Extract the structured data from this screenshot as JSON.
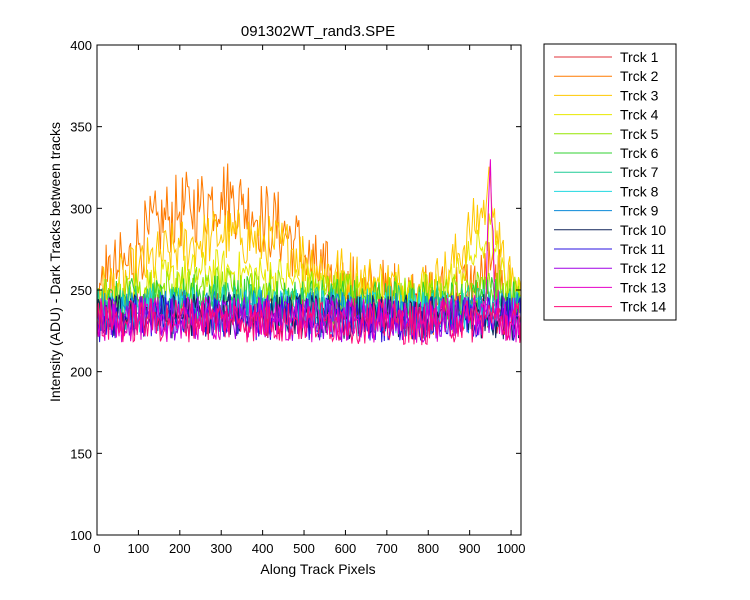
{
  "chart_data": {
    "type": "line",
    "title": "091302WT_rand3.SPE",
    "xlabel": "Along Track Pixels",
    "ylabel": "Intensity (ADU) - Dark Tracks between tracks",
    "xlim": [
      0,
      1024
    ],
    "ylim": [
      100,
      400
    ],
    "x_ticks": [
      "0",
      "100",
      "200",
      "300",
      "400",
      "500",
      "600",
      "700",
      "800",
      "900",
      "1000"
    ],
    "y_ticks": [
      "100",
      "150",
      "200",
      "250",
      "300",
      "350",
      "400"
    ],
    "grid": false,
    "legend_position": "outside-right",
    "x_sample": [
      0,
      25,
      50,
      75,
      100,
      125,
      150,
      175,
      200,
      225,
      250,
      275,
      300,
      325,
      350,
      375,
      400,
      425,
      450,
      475,
      500,
      525,
      550,
      575,
      600,
      625,
      650,
      675,
      700,
      725,
      750,
      775,
      800,
      825,
      850,
      875,
      900,
      925,
      940,
      950,
      960,
      975,
      1000,
      1024
    ],
    "series": [
      {
        "name": "Trck 1",
        "color": "#e0303a",
        "values": [
          236,
          234,
          237,
          235,
          238,
          236,
          237,
          235,
          236,
          238,
          237,
          236,
          235,
          237,
          236,
          238,
          236,
          235,
          237,
          236,
          234,
          236,
          237,
          235,
          236,
          238,
          235,
          236,
          237,
          235,
          236,
          234,
          236,
          237,
          235,
          236,
          237,
          236,
          238,
          240,
          236,
          235,
          236,
          235
        ]
      },
      {
        "name": "Trck 2",
        "color": "#ff7a00",
        "values": [
          248,
          255,
          262,
          265,
          278,
          284,
          290,
          295,
          298,
          300,
          302,
          305,
          310,
          306,
          302,
          298,
          294,
          290,
          286,
          280,
          270,
          262,
          258,
          254,
          250,
          248,
          246,
          247,
          246,
          245,
          244,
          243,
          242,
          244,
          246,
          248,
          250,
          252,
          256,
          262,
          255,
          250,
          246,
          244
        ]
      },
      {
        "name": "Trck 3",
        "color": "#ffc800",
        "values": [
          246,
          250,
          254,
          257,
          262,
          266,
          270,
          273,
          276,
          278,
          280,
          282,
          284,
          283,
          282,
          281,
          279,
          278,
          277,
          275,
          270,
          266,
          263,
          261,
          259,
          257,
          255,
          254,
          253,
          252,
          251,
          251,
          252,
          255,
          262,
          272,
          285,
          296,
          302,
          318,
          300,
          270,
          252,
          248
        ]
      },
      {
        "name": "Trck 4",
        "color": "#e8e800",
        "values": [
          240,
          243,
          246,
          248,
          250,
          252,
          254,
          256,
          258,
          259,
          260,
          261,
          262,
          261,
          260,
          259,
          258,
          258,
          257,
          256,
          254,
          252,
          251,
          250,
          250,
          249,
          249,
          248,
          248,
          248,
          247,
          247,
          248,
          250,
          254,
          260,
          268,
          276,
          280,
          290,
          275,
          260,
          248,
          246
        ]
      },
      {
        "name": "Trck 5",
        "color": "#96e600",
        "values": [
          242,
          244,
          246,
          247,
          248,
          249,
          250,
          250,
          251,
          251,
          252,
          252,
          252,
          252,
          251,
          251,
          250,
          250,
          250,
          249,
          248,
          248,
          247,
          247,
          247,
          246,
          246,
          246,
          245,
          245,
          245,
          245,
          246,
          246,
          247,
          248,
          249,
          250,
          250,
          252,
          250,
          248,
          246,
          245
        ]
      },
      {
        "name": "Trck 6",
        "color": "#30d030",
        "values": [
          240,
          241,
          242,
          243,
          244,
          244,
          245,
          245,
          245,
          246,
          246,
          246,
          246,
          246,
          245,
          245,
          245,
          245,
          244,
          244,
          244,
          243,
          243,
          243,
          243,
          242,
          242,
          242,
          242,
          242,
          242,
          242,
          242,
          243,
          243,
          243,
          244,
          244,
          244,
          245,
          244,
          243,
          242,
          242
        ]
      },
      {
        "name": "Trck 7",
        "color": "#1ecc96",
        "values": [
          238,
          239,
          239,
          240,
          240,
          240,
          241,
          241,
          241,
          241,
          241,
          241,
          241,
          241,
          241,
          241,
          240,
          240,
          240,
          240,
          240,
          240,
          239,
          239,
          239,
          239,
          239,
          239,
          239,
          239,
          239,
          239,
          239,
          239,
          240,
          240,
          240,
          240,
          241,
          241,
          240,
          240,
          239,
          239
        ]
      },
      {
        "name": "Trck 8",
        "color": "#20d8e0",
        "values": [
          236,
          237,
          237,
          237,
          237,
          238,
          238,
          238,
          238,
          238,
          238,
          238,
          238,
          238,
          238,
          238,
          238,
          237,
          237,
          237,
          237,
          237,
          237,
          237,
          237,
          237,
          237,
          236,
          236,
          236,
          236,
          236,
          236,
          236,
          237,
          237,
          237,
          237,
          237,
          238,
          237,
          237,
          236,
          236
        ]
      },
      {
        "name": "Trck 9",
        "color": "#0a8ad8",
        "values": [
          234,
          235,
          235,
          235,
          236,
          236,
          236,
          236,
          236,
          236,
          236,
          236,
          236,
          236,
          236,
          236,
          236,
          236,
          235,
          235,
          235,
          235,
          235,
          235,
          235,
          235,
          235,
          235,
          235,
          235,
          234,
          234,
          234,
          235,
          235,
          235,
          235,
          235,
          236,
          236,
          235,
          235,
          235,
          234
        ]
      },
      {
        "name": "Trck 10",
        "color": "#10245a",
        "values": [
          233,
          233,
          234,
          234,
          234,
          234,
          234,
          234,
          234,
          235,
          235,
          235,
          235,
          235,
          234,
          234,
          234,
          234,
          234,
          234,
          234,
          234,
          234,
          234,
          234,
          233,
          233,
          233,
          233,
          233,
          233,
          233,
          233,
          233,
          234,
          234,
          234,
          234,
          234,
          235,
          234,
          234,
          233,
          233
        ]
      },
      {
        "name": "Trck 11",
        "color": "#2a10e0",
        "values": [
          232,
          232,
          233,
          233,
          233,
          233,
          233,
          233,
          233,
          233,
          234,
          234,
          234,
          234,
          233,
          233,
          233,
          233,
          233,
          233,
          233,
          233,
          233,
          233,
          233,
          232,
          232,
          232,
          232,
          232,
          232,
          232,
          232,
          232,
          233,
          233,
          233,
          233,
          233,
          234,
          233,
          233,
          232,
          232
        ]
      },
      {
        "name": "Trck 12",
        "color": "#a000e6",
        "values": [
          232,
          232,
          232,
          232,
          232,
          233,
          233,
          233,
          233,
          233,
          233,
          233,
          233,
          233,
          233,
          233,
          233,
          233,
          232,
          232,
          232,
          232,
          232,
          232,
          232,
          232,
          232,
          232,
          232,
          232,
          232,
          231,
          231,
          232,
          232,
          232,
          232,
          232,
          233,
          235,
          233,
          232,
          232,
          232
        ]
      },
      {
        "name": "Trck 13",
        "color": "#e400c8",
        "values": [
          231,
          231,
          232,
          232,
          232,
          232,
          232,
          232,
          232,
          232,
          232,
          232,
          232,
          232,
          232,
          232,
          232,
          232,
          232,
          232,
          232,
          231,
          231,
          231,
          231,
          231,
          231,
          231,
          231,
          231,
          231,
          231,
          231,
          231,
          232,
          232,
          233,
          236,
          250,
          330,
          245,
          234,
          231,
          231
        ]
      },
      {
        "name": "Trck 14",
        "color": "#ff0a78",
        "values": [
          230,
          231,
          231,
          231,
          231,
          231,
          231,
          232,
          232,
          232,
          232,
          232,
          232,
          232,
          232,
          231,
          231,
          231,
          231,
          231,
          231,
          231,
          231,
          231,
          231,
          231,
          231,
          231,
          230,
          230,
          230,
          230,
          230,
          231,
          231,
          231,
          231,
          232,
          233,
          236,
          232,
          231,
          230,
          230
        ]
      }
    ]
  }
}
